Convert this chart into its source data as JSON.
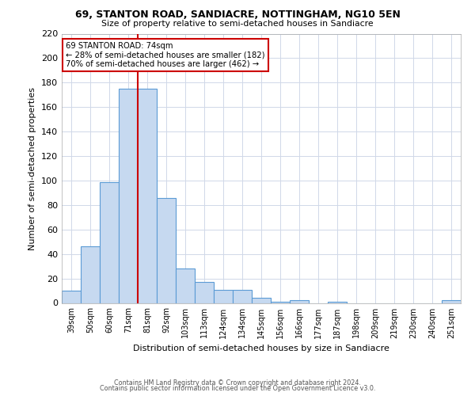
{
  "title": "69, STANTON ROAD, SANDIACRE, NOTTINGHAM, NG10 5EN",
  "subtitle": "Size of property relative to semi-detached houses in Sandiacre",
  "xlabel": "Distribution of semi-detached houses by size in Sandiacre",
  "ylabel": "Number of semi-detached properties",
  "categories": [
    "39sqm",
    "50sqm",
    "60sqm",
    "71sqm",
    "81sqm",
    "92sqm",
    "103sqm",
    "113sqm",
    "124sqm",
    "134sqm",
    "145sqm",
    "156sqm",
    "166sqm",
    "177sqm",
    "187sqm",
    "198sqm",
    "209sqm",
    "219sqm",
    "230sqm",
    "240sqm",
    "251sqm"
  ],
  "values": [
    10,
    46,
    99,
    175,
    175,
    86,
    28,
    17,
    11,
    11,
    4,
    1,
    2,
    0,
    1,
    0,
    0,
    0,
    0,
    0,
    2
  ],
  "bar_color": "#c6d9f0",
  "bar_edge_color": "#5b9bd5",
  "highlight_line_color": "#cc0000",
  "highlight_line_xindex": 3.5,
  "ylim": [
    0,
    220
  ],
  "yticks": [
    0,
    20,
    40,
    60,
    80,
    100,
    120,
    140,
    160,
    180,
    200,
    220
  ],
  "annotation_title": "69 STANTON ROAD: 74sqm",
  "annotation_line1": "← 28% of semi-detached houses are smaller (182)",
  "annotation_line2": "70% of semi-detached houses are larger (462) →",
  "annotation_box_color": "#ffffff",
  "annotation_box_edge": "#cc0000",
  "footer_line1": "Contains HM Land Registry data © Crown copyright and database right 2024.",
  "footer_line2": "Contains public sector information licensed under the Open Government Licence v3.0.",
  "background_color": "#ffffff",
  "grid_color": "#d0d8e8"
}
